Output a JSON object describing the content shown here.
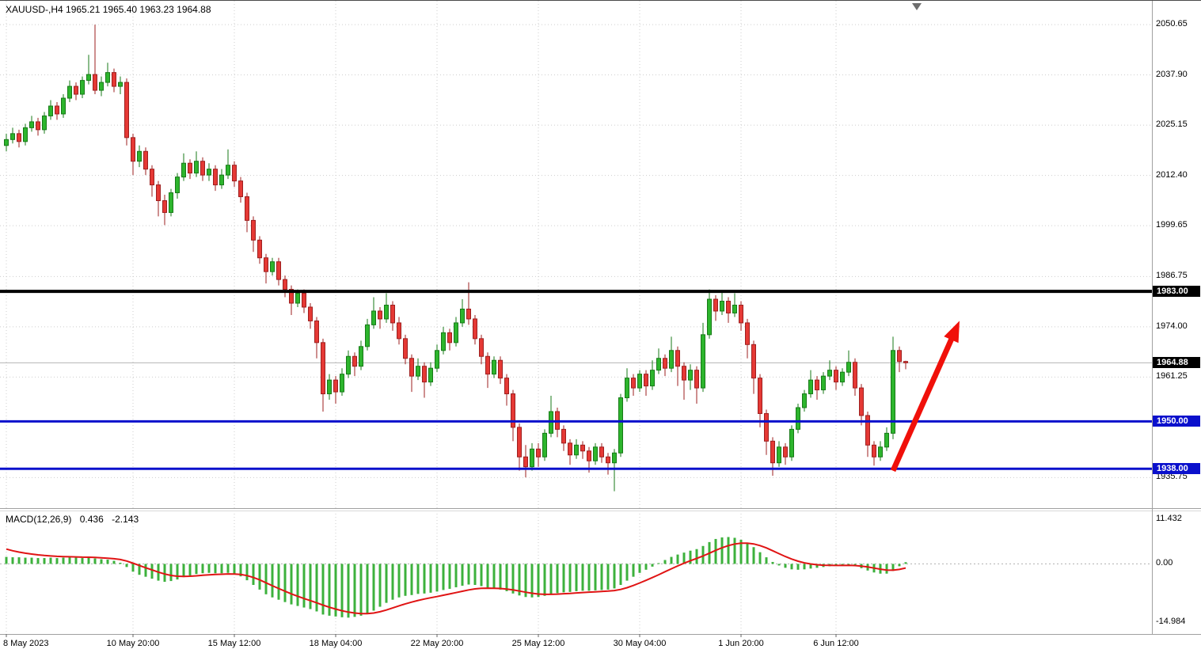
{
  "header": {
    "symbol_info": "XAUUSD-,H4 1965.21 1965.40 1963.23 1964.88"
  },
  "chart_data": {
    "type": "candlestick",
    "title": "XAUUSD- H4",
    "timeframe": "H4",
    "ohlc_current": {
      "open": 1965.21,
      "high": 1965.4,
      "low": 1963.23,
      "close": 1964.88
    },
    "price_axis": {
      "top": 2056.7,
      "bottom": 1928.0,
      "ticks": [
        {
          "v": 2050.65,
          "label": "2050.65"
        },
        {
          "v": 2037.9,
          "label": "2037.90"
        },
        {
          "v": 2025.15,
          "label": "2025.15"
        },
        {
          "v": 2012.4,
          "label": "2012.40"
        },
        {
          "v": 1999.65,
          "label": "1999.65"
        },
        {
          "v": 1986.75,
          "label": "1986.75"
        },
        {
          "v": 1974.0,
          "label": "1974.00"
        },
        {
          "v": 1961.25,
          "label": "1961.25"
        },
        {
          "v": 1935.75,
          "label": "1935.75"
        }
      ]
    },
    "x_labels": [
      {
        "label": "8 May 2023",
        "index": 0
      },
      {
        "label": "10 May 20:00",
        "index": 20
      },
      {
        "label": "15 May 12:00",
        "index": 36
      },
      {
        "label": "18 May 04:00",
        "index": 52
      },
      {
        "label": "22 May 20:00",
        "index": 68
      },
      {
        "label": "25 May 12:00",
        "index": 84
      },
      {
        "label": "30 May 04:00",
        "index": 100
      },
      {
        "label": "1 Jun 20:00",
        "index": 116
      },
      {
        "label": "6 Jun 12:00",
        "index": 131
      }
    ],
    "hlines": [
      {
        "name": "resistance-line-1983",
        "price": 1983.0,
        "label": "1983.00",
        "color": "#000000",
        "width": 4,
        "badge_bg": "#000000"
      },
      {
        "name": "support-line-1950",
        "price": 1950.0,
        "label": "1950.00",
        "color": "#0a10cc",
        "width": 3,
        "badge_bg": "#0a10cc"
      },
      {
        "name": "support-line-1938",
        "price": 1938.0,
        "label": "1938.00",
        "color": "#0a10cc",
        "width": 3,
        "badge_bg": "#0a10cc"
      }
    ],
    "current_price": {
      "value": 1964.88,
      "label": "1964.88",
      "badge_bg": "#000000"
    },
    "arrow": {
      "from": {
        "index": 140,
        "price": 1937.5
      },
      "to": {
        "index": 150.5,
        "price": 1975.5
      }
    },
    "candles": [
      [
        2020.0,
        2023.0,
        2018.5,
        2021.5
      ],
      [
        2021.5,
        2024.5,
        2020.5,
        2023.0
      ],
      [
        2023.0,
        2024.0,
        2019.5,
        2021.0
      ],
      [
        2021.0,
        2025.5,
        2020.0,
        2024.5
      ],
      [
        2024.5,
        2027.5,
        2023.5,
        2026.0
      ],
      [
        2026.0,
        2027.0,
        2022.5,
        2024.0
      ],
      [
        2024.0,
        2028.5,
        2023.0,
        2027.5
      ],
      [
        2027.5,
        2031.5,
        2026.5,
        2030.0
      ],
      [
        2030.0,
        2031.0,
        2026.5,
        2028.0
      ],
      [
        2028.0,
        2033.0,
        2027.0,
        2032.0
      ],
      [
        2032.0,
        2036.5,
        2031.0,
        2035.0
      ],
      [
        2035.0,
        2036.0,
        2031.5,
        2033.0
      ],
      [
        2033.0,
        2037.5,
        2032.0,
        2036.5
      ],
      [
        2036.5,
        2043.0,
        2035.5,
        2038.0
      ],
      [
        2038.0,
        2050.65,
        2033.0,
        2034.0
      ],
      [
        2034.0,
        2037.5,
        2032.5,
        2036.0
      ],
      [
        2036.0,
        2041.0,
        2035.0,
        2038.5
      ],
      [
        2038.5,
        2039.5,
        2033.5,
        2035.0
      ],
      [
        2035.0,
        2037.5,
        2033.0,
        2036.0
      ],
      [
        2036.0,
        2037.0,
        2020.0,
        2022.0
      ],
      [
        2022.0,
        2023.0,
        2012.5,
        2016.0
      ],
      [
        2016.0,
        2020.0,
        2014.5,
        2018.5
      ],
      [
        2018.5,
        2019.5,
        2012.5,
        2014.0
      ],
      [
        2014.0,
        2015.0,
        2007.0,
        2010.0
      ],
      [
        2010.0,
        2011.0,
        2002.0,
        2006.0
      ],
      [
        2006.0,
        2007.5,
        1999.8,
        2003.0
      ],
      [
        2003.0,
        2009.0,
        2002.0,
        2008.0
      ],
      [
        2008.0,
        2013.0,
        2006.5,
        2012.0
      ],
      [
        2012.0,
        2018.0,
        2011.0,
        2015.5
      ],
      [
        2015.5,
        2016.5,
        2011.5,
        2013.0
      ],
      [
        2013.0,
        2018.5,
        2012.0,
        2016.0
      ],
      [
        2016.0,
        2017.0,
        2011.0,
        2012.5
      ],
      [
        2012.5,
        2015.5,
        2011.0,
        2014.0
      ],
      [
        2014.0,
        2015.0,
        2008.5,
        2010.0
      ],
      [
        2010.0,
        2014.0,
        2009.0,
        2012.5
      ],
      [
        2012.5,
        2019.0,
        2011.5,
        2015.0
      ],
      [
        2015.0,
        2016.0,
        2009.5,
        2011.0
      ],
      [
        2011.0,
        2012.0,
        2005.5,
        2007.0
      ],
      [
        2007.0,
        2008.0,
        1998.0,
        2001.0
      ],
      [
        2001.0,
        2002.0,
        1993.0,
        1996.0
      ],
      [
        1996.0,
        1997.0,
        1990.0,
        1991.5
      ],
      [
        1991.5,
        1992.5,
        1985.0,
        1988.0
      ],
      [
        1988.0,
        1991.5,
        1987.0,
        1990.5
      ],
      [
        1990.5,
        1991.5,
        1984.5,
        1986.0
      ],
      [
        1986.0,
        1987.0,
        1981.5,
        1983.5
      ],
      [
        1983.5,
        1984.5,
        1977.0,
        1980.0
      ],
      [
        1980.0,
        1983.5,
        1979.0,
        1982.5
      ],
      [
        1982.5,
        1983.5,
        1977.5,
        1979.0
      ],
      [
        1979.0,
        1980.0,
        1973.5,
        1975.5
      ],
      [
        1975.5,
        1976.5,
        1966.0,
        1970.0
      ],
      [
        1970.0,
        1971.0,
        1952.5,
        1957.0
      ],
      [
        1957.0,
        1962.0,
        1955.5,
        1960.5
      ],
      [
        1960.5,
        1961.5,
        1954.5,
        1957.5
      ],
      [
        1957.5,
        1963.5,
        1956.5,
        1962.0
      ],
      [
        1962.0,
        1968.0,
        1961.0,
        1966.5
      ],
      [
        1966.5,
        1967.5,
        1961.5,
        1964.0
      ],
      [
        1964.0,
        1970.5,
        1963.0,
        1969.0
      ],
      [
        1969.0,
        1976.0,
        1968.0,
        1974.5
      ],
      [
        1974.5,
        1981.5,
        1973.5,
        1978.0
      ],
      [
        1978.0,
        1979.0,
        1973.5,
        1976.0
      ],
      [
        1976.0,
        1982.5,
        1975.0,
        1979.5
      ],
      [
        1979.5,
        1980.5,
        1973.0,
        1975.0
      ],
      [
        1975.0,
        1976.5,
        1969.5,
        1971.0
      ],
      [
        1971.0,
        1972.0,
        1964.5,
        1966.0
      ],
      [
        1966.0,
        1967.0,
        1957.5,
        1961.5
      ],
      [
        1961.5,
        1966.0,
        1960.5,
        1964.0
      ],
      [
        1964.0,
        1965.0,
        1956.0,
        1960.0
      ],
      [
        1960.0,
        1965.0,
        1959.0,
        1963.5
      ],
      [
        1963.5,
        1969.5,
        1962.5,
        1968.0
      ],
      [
        1968.0,
        1974.0,
        1967.0,
        1972.5
      ],
      [
        1972.5,
        1973.5,
        1968.0,
        1970.0
      ],
      [
        1970.0,
        1976.5,
        1969.0,
        1975.0
      ],
      [
        1975.0,
        1981.0,
        1974.0,
        1978.5
      ],
      [
        1978.5,
        1985.3,
        1974.5,
        1976.0
      ],
      [
        1976.0,
        1977.0,
        1969.5,
        1971.0
      ],
      [
        1971.0,
        1972.0,
        1964.5,
        1966.5
      ],
      [
        1966.5,
        1967.5,
        1958.5,
        1962.0
      ],
      [
        1962.0,
        1966.5,
        1961.0,
        1965.5
      ],
      [
        1965.5,
        1966.5,
        1959.5,
        1961.0
      ],
      [
        1961.0,
        1962.0,
        1954.0,
        1957.0
      ],
      [
        1957.0,
        1958.0,
        1945.0,
        1948.5
      ],
      [
        1948.5,
        1949.5,
        1937.5,
        1941.0
      ],
      [
        1941.0,
        1944.0,
        1935.8,
        1938.5
      ],
      [
        1938.5,
        1944.5,
        1937.5,
        1943.0
      ],
      [
        1943.0,
        1944.5,
        1938.5,
        1941.0
      ],
      [
        1941.0,
        1948.0,
        1940.0,
        1947.0
      ],
      [
        1947.0,
        1956.5,
        1946.0,
        1952.5
      ],
      [
        1952.5,
        1953.5,
        1946.0,
        1948.0
      ],
      [
        1948.0,
        1949.0,
        1942.5,
        1944.5
      ],
      [
        1944.5,
        1945.5,
        1939.0,
        1941.5
      ],
      [
        1941.5,
        1945.5,
        1940.5,
        1944.0
      ],
      [
        1944.0,
        1945.0,
        1940.5,
        1942.5
      ],
      [
        1942.5,
        1943.5,
        1937.0,
        1940.0
      ],
      [
        1940.0,
        1944.5,
        1939.0,
        1943.5
      ],
      [
        1943.5,
        1944.5,
        1939.5,
        1941.0
      ],
      [
        1941.0,
        1942.0,
        1936.5,
        1939.5
      ],
      [
        1939.5,
        1943.0,
        1932.3,
        1942.0
      ],
      [
        1942.0,
        1957.0,
        1941.0,
        1956.0
      ],
      [
        1956.0,
        1963.5,
        1955.0,
        1961.0
      ],
      [
        1961.0,
        1962.0,
        1956.5,
        1958.5
      ],
      [
        1958.5,
        1963.0,
        1957.5,
        1962.0
      ],
      [
        1962.0,
        1963.0,
        1956.5,
        1959.0
      ],
      [
        1959.0,
        1965.5,
        1958.0,
        1963.0
      ],
      [
        1963.0,
        1968.5,
        1962.0,
        1966.0
      ],
      [
        1966.0,
        1967.0,
        1961.5,
        1963.5
      ],
      [
        1963.5,
        1971.5,
        1962.5,
        1968.0
      ],
      [
        1968.0,
        1969.0,
        1959.0,
        1964.0
      ],
      [
        1964.0,
        1965.0,
        1955.5,
        1960.5
      ],
      [
        1960.5,
        1964.5,
        1958.0,
        1963.0
      ],
      [
        1963.0,
        1964.0,
        1954.5,
        1958.5
      ],
      [
        1958.5,
        1975.0,
        1957.5,
        1972.0
      ],
      [
        1972.0,
        1983.5,
        1971.0,
        1981.0
      ],
      [
        1981.0,
        1982.0,
        1975.5,
        1978.0
      ],
      [
        1978.0,
        1983.0,
        1977.0,
        1980.5
      ],
      [
        1980.5,
        1981.5,
        1975.0,
        1977.5
      ],
      [
        1977.5,
        1982.5,
        1976.5,
        1979.5
      ],
      [
        1979.5,
        1980.5,
        1973.0,
        1975.0
      ],
      [
        1975.0,
        1976.0,
        1966.0,
        1969.5
      ],
      [
        1969.5,
        1970.5,
        1957.0,
        1961.0
      ],
      [
        1961.0,
        1962.0,
        1948.5,
        1952.0
      ],
      [
        1952.0,
        1953.0,
        1941.5,
        1945.0
      ],
      [
        1945.0,
        1946.0,
        1936.2,
        1939.5
      ],
      [
        1939.5,
        1945.0,
        1938.5,
        1943.5
      ],
      [
        1943.5,
        1944.5,
        1939.0,
        1941.0
      ],
      [
        1941.0,
        1949.0,
        1940.0,
        1948.0
      ],
      [
        1948.0,
        1954.5,
        1947.0,
        1953.5
      ],
      [
        1953.5,
        1958.0,
        1952.5,
        1957.0
      ],
      [
        1957.0,
        1963.0,
        1956.0,
        1960.5
      ],
      [
        1960.5,
        1961.5,
        1955.5,
        1958.0
      ],
      [
        1958.0,
        1962.5,
        1957.0,
        1961.5
      ],
      [
        1961.5,
        1965.5,
        1960.5,
        1963.0
      ],
      [
        1963.0,
        1964.0,
        1958.0,
        1960.0
      ],
      [
        1960.0,
        1963.5,
        1959.0,
        1962.5
      ],
      [
        1962.5,
        1968.0,
        1961.5,
        1965.0
      ],
      [
        1965.0,
        1966.0,
        1956.5,
        1958.5
      ],
      [
        1958.5,
        1959.5,
        1949.0,
        1951.5
      ],
      [
        1951.5,
        1952.5,
        1941.0,
        1944.0
      ],
      [
        1944.0,
        1945.0,
        1938.8,
        1941.0
      ],
      [
        1941.0,
        1945.0,
        1940.0,
        1943.5
      ],
      [
        1943.5,
        1948.5,
        1942.5,
        1947.0
      ],
      [
        1947.0,
        1971.5,
        1945.5,
        1968.0
      ],
      [
        1968.0,
        1969.0,
        1962.5,
        1965.2
      ],
      [
        1965.21,
        1965.4,
        1963.23,
        1964.88
      ]
    ],
    "macd": {
      "label": "MACD(12,26,9)",
      "macd_value": "0.436",
      "signal_value": "-2.143",
      "signal_start": 3.8,
      "axis": {
        "top": 13.5,
        "bottom": -18.0,
        "ticks": [
          {
            "v": 11.432,
            "label": "11.432"
          },
          {
            "v": 0,
            "label": "0.00"
          },
          {
            "v": -14.984,
            "label": "-14.984"
          }
        ]
      },
      "hist": [
        1.8,
        1.7,
        1.7,
        1.6,
        1.6,
        1.5,
        1.5,
        1.6,
        1.5,
        1.6,
        1.7,
        1.6,
        1.5,
        1.6,
        1.4,
        1.2,
        1.1,
        0.8,
        0.3,
        -0.8,
        -2.0,
        -2.8,
        -3.3,
        -3.8,
        -4.3,
        -4.6,
        -4.4,
        -4.0,
        -3.4,
        -3.0,
        -2.6,
        -2.4,
        -2.3,
        -2.4,
        -2.4,
        -2.3,
        -2.6,
        -3.2,
        -4.2,
        -5.4,
        -6.6,
        -7.8,
        -8.6,
        -9.2,
        -9.8,
        -10.4,
        -10.8,
        -11.2,
        -11.6,
        -12.2,
        -13.0,
        -13.3,
        -13.5,
        -13.7,
        -13.8,
        -13.6,
        -13.3,
        -12.8,
        -12.0,
        -11.0,
        -10.0,
        -9.2,
        -8.6,
        -8.2,
        -8.0,
        -7.7,
        -7.6,
        -7.4,
        -7.1,
        -6.7,
        -6.4,
        -6.0,
        -5.6,
        -5.3,
        -5.4,
        -5.7,
        -6.1,
        -6.3,
        -6.6,
        -7.0,
        -7.6,
        -8.1,
        -8.5,
        -8.6,
        -8.5,
        -8.2,
        -7.8,
        -7.5,
        -7.3,
        -7.2,
        -7.0,
        -6.9,
        -6.9,
        -6.8,
        -6.7,
        -6.6,
        -6.3,
        -5.4,
        -4.3,
        -3.3,
        -2.3,
        -1.5,
        -0.7,
        0.2,
        1.0,
        1.8,
        2.4,
        2.9,
        3.4,
        3.8,
        4.6,
        5.6,
        6.4,
        6.8,
        6.9,
        6.7,
        6.2,
        5.4,
        4.3,
        3.0,
        1.7,
        0.5,
        -0.4,
        -1.0,
        -1.4,
        -1.5,
        -1.4,
        -1.2,
        -1.0,
        -0.8,
        -0.6,
        -0.5,
        -0.4,
        -0.3,
        -0.6,
        -1.1,
        -1.7,
        -2.2,
        -2.5,
        -2.5,
        -1.8,
        -0.6,
        0.436
      ]
    },
    "colors": {
      "up": "#2db52d",
      "up_border": "#177a17",
      "down": "#e53935",
      "down_border": "#9e1f1f",
      "grid": "#cdcdcd",
      "hist": "#3cb13c",
      "signal": "#e01414",
      "current_line": "#b5b5b5",
      "arrow": "#f0100a",
      "separator": "#a0a0a0"
    }
  }
}
